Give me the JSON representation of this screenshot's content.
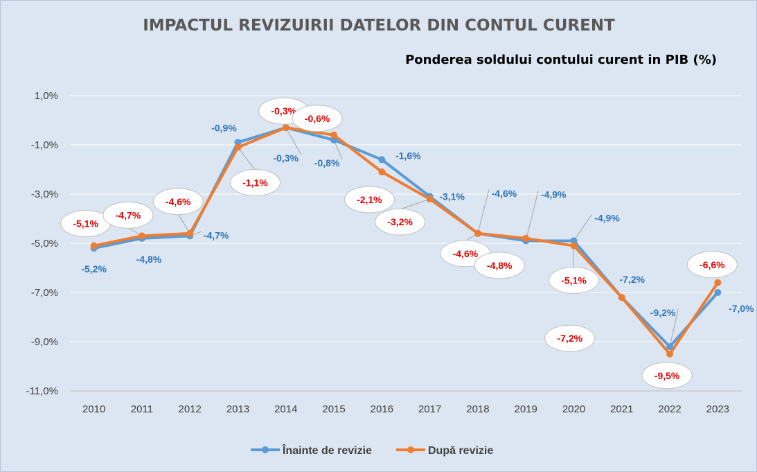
{
  "chart_data": {
    "type": "line",
    "title": "IMPACTUL REVIZUIRII DATELOR DIN CONTUL CURENT",
    "subtitle": "Ponderea soldului contului curent in PIB (%)",
    "xlabel": "",
    "ylabel": "",
    "categories": [
      "2010",
      "2011",
      "2012",
      "2013",
      "2014",
      "2015",
      "2016",
      "2017",
      "2018",
      "2019",
      "2020",
      "2021",
      "2022",
      "2023"
    ],
    "yticks": [
      "1,0%",
      "-1,0%",
      "-3,0%",
      "-5,0%",
      "-7,0%",
      "-9,0%",
      "-11,0%"
    ],
    "ylim": [
      -11,
      1
    ],
    "grid": "horizontal",
    "legend_position": "bottom",
    "series": [
      {
        "name": "Înainte de revizie",
        "color": "#5b9bd5",
        "label_color": "#2e75b6",
        "values": [
          -5.2,
          -4.8,
          -4.7,
          -0.9,
          -0.3,
          -0.8,
          -1.6,
          -3.1,
          -4.6,
          -4.9,
          -4.9,
          -7.2,
          -9.2,
          -7.0
        ],
        "labels": [
          "-5,2%",
          "-4,8%",
          "-4,7%",
          "-0,9%",
          "-0,3%",
          "-0,8%",
          "-1,6%",
          "-3,1%",
          "-4,6%",
          "-4,9%",
          "-4,9%",
          "-7,2%",
          "-9,2%",
          "-7,0%"
        ]
      },
      {
        "name": "După revizie",
        "color": "#ed7d31",
        "label_color": "#e00000",
        "values": [
          -5.1,
          -4.7,
          -4.6,
          -1.1,
          -0.3,
          -0.6,
          -2.1,
          -3.2,
          -4.6,
          -4.8,
          -5.1,
          -7.2,
          -9.5,
          -6.6
        ],
        "labels": [
          "-5,1%",
          "-4,7%",
          "-4,6%",
          "-1,1%",
          "-0,3%",
          "-0,6%",
          "-2,1%",
          "-3,2%",
          "-4,6%",
          "-4,8%",
          "-5,1%",
          "-7,2%",
          "-9,5%",
          "-6,6%"
        ]
      }
    ]
  }
}
